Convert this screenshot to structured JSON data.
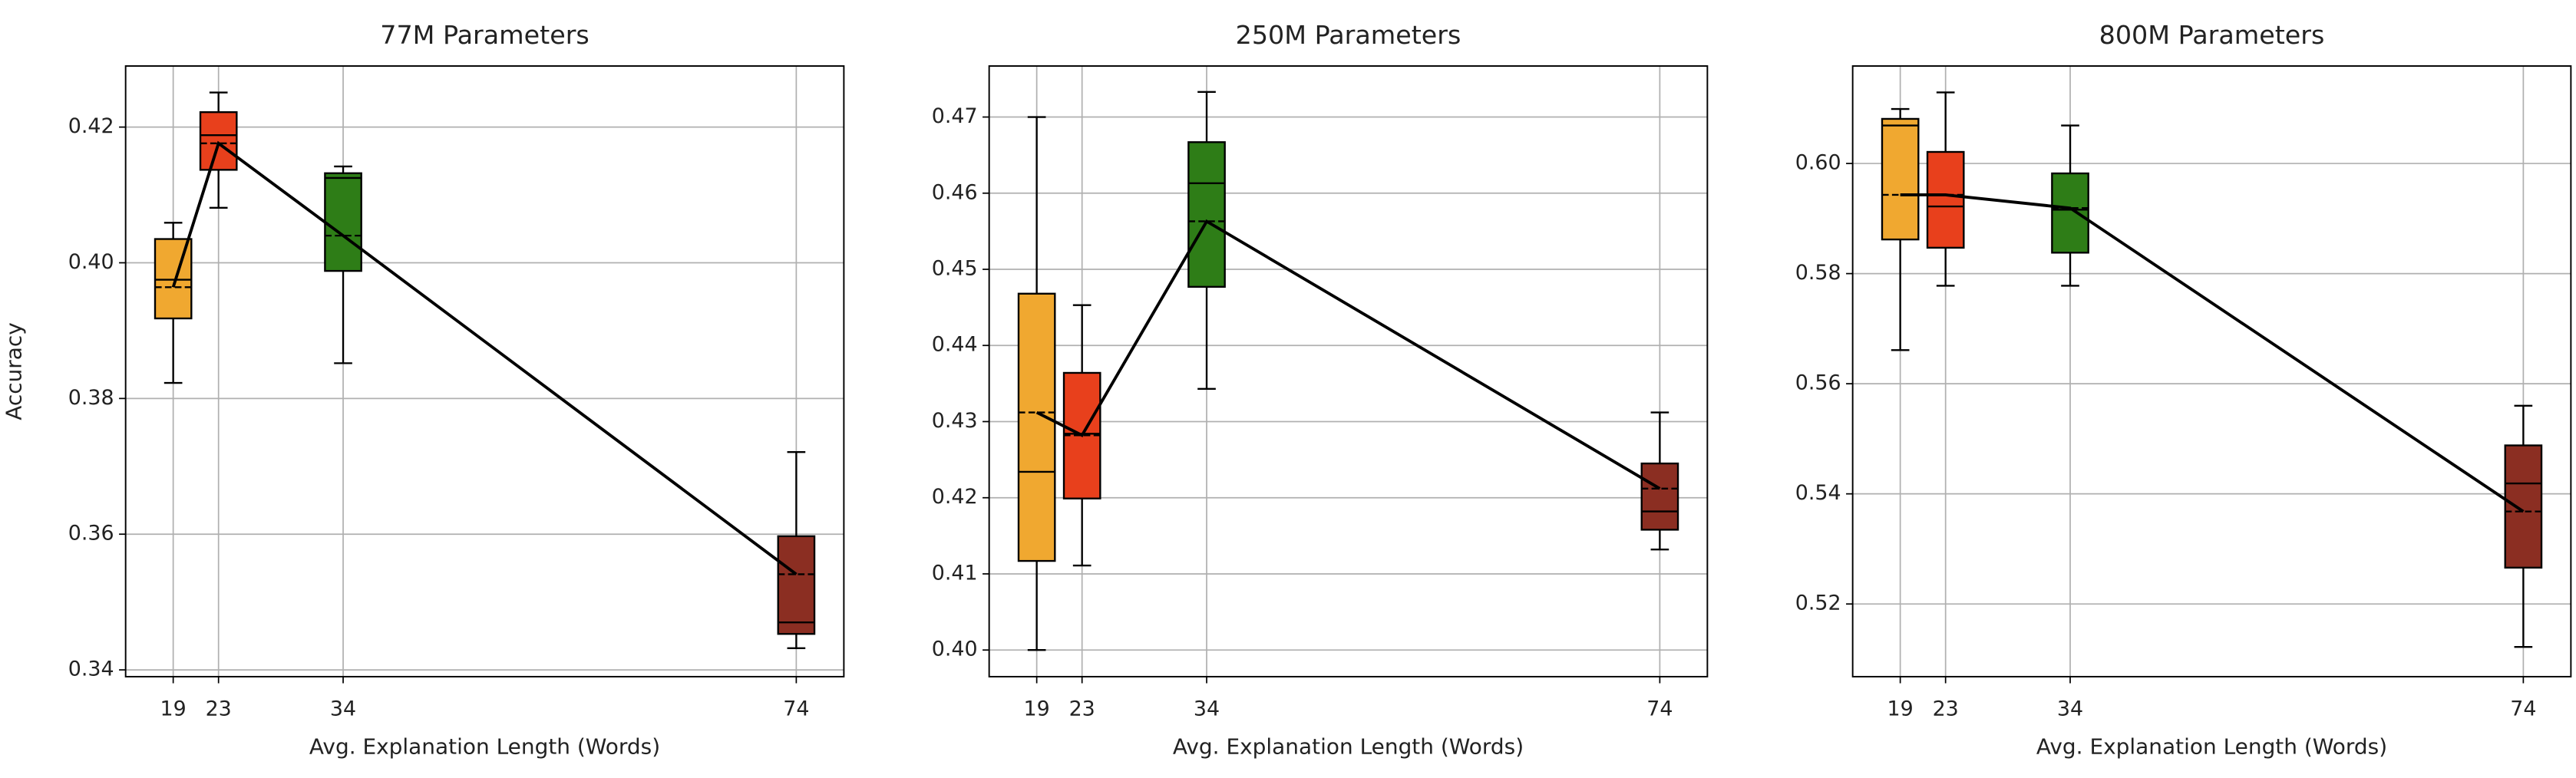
{
  "chart_data": [
    {
      "type": "box",
      "title": "77M Parameters",
      "xlabel": "Avg. Explanation Length (Words)",
      "ylabel": "Accuracy",
      "x": [
        19,
        23,
        34,
        74
      ],
      "colors": [
        "#f0a830",
        "#e8401c",
        "#2e7d17",
        "#8b2e22"
      ],
      "min": [
        0.3823,
        0.4081,
        0.3852,
        0.3432
      ],
      "q1": [
        0.3918,
        0.4137,
        0.3988,
        0.3453
      ],
      "median": [
        0.3975,
        0.4188,
        0.4125,
        0.347
      ],
      "q3": [
        0.4035,
        0.4222,
        0.4132,
        0.3597
      ],
      "max": [
        0.4059,
        0.4251,
        0.4142,
        0.3721
      ],
      "mean": [
        0.3964,
        0.4176,
        0.404,
        0.3541
      ],
      "xlim": [
        14.8,
        78.2
      ],
      "ylim": [
        0.339,
        0.429
      ],
      "xticks": [
        19,
        23,
        34,
        74
      ],
      "yticks": [
        0.34,
        0.36,
        0.38,
        {
          "value": 0.4,
          "label": "0.40"
        },
        0.42
      ],
      "grid": true
    },
    {
      "type": "box",
      "title": "250M Parameters",
      "xlabel": "Avg. Explanation Length (Words)",
      "x": [
        19,
        23,
        34,
        74
      ],
      "colors": [
        "#f0a830",
        "#e8401c",
        "#2e7d17",
        "#8b2e22"
      ],
      "min": [
        0.4,
        0.4111,
        0.4343,
        0.4132
      ],
      "q1": [
        0.4117,
        0.4199,
        0.4477,
        0.4158
      ],
      "median": [
        0.4234,
        0.4284,
        0.4613,
        0.4182
      ],
      "q3": [
        0.4468,
        0.4364,
        0.4667,
        0.4245
      ],
      "max": [
        0.47,
        0.4453,
        0.4733,
        0.4312
      ],
      "mean": [
        0.4312,
        0.4282,
        0.4563,
        0.4212
      ],
      "xlim": [
        14.8,
        78.2
      ],
      "ylim": [
        0.3965,
        0.4767
      ],
      "xticks": [
        19,
        23,
        34,
        74
      ],
      "yticks": [
        {
          "value": 0.4,
          "label": "0.40"
        },
        0.41,
        0.42,
        0.43,
        0.44,
        0.45,
        0.46,
        0.47
      ],
      "grid": true
    },
    {
      "type": "box",
      "title": "800M Parameters",
      "xlabel": "Avg. Explanation Length (Words)",
      "x": [
        19,
        23,
        34,
        74
      ],
      "colors": [
        "#f0a830",
        "#e8401c",
        "#2e7d17",
        "#8b2e22"
      ],
      "min": [
        0.5661,
        0.5778,
        0.5778,
        0.5122
      ],
      "q1": [
        0.5862,
        0.5847,
        0.5838,
        0.5266
      ],
      "median": [
        0.6069,
        0.5922,
        0.5916,
        0.5419
      ],
      "q3": [
        0.6081,
        0.6021,
        0.5982,
        0.5488
      ],
      "max": [
        0.6099,
        0.6129,
        0.6069,
        0.556
      ],
      "mean": [
        0.5943,
        0.5943,
        0.5919,
        0.5368
      ],
      "xlim": [
        14.8,
        78.2
      ],
      "ylim": [
        0.5068,
        0.6177
      ],
      "xticks": [
        19,
        23,
        34,
        74
      ],
      "yticks": [
        0.52,
        0.54,
        0.56,
        0.58,
        {
          "value": 0.6,
          "label": "0.60"
        }
      ],
      "grid": true
    }
  ]
}
